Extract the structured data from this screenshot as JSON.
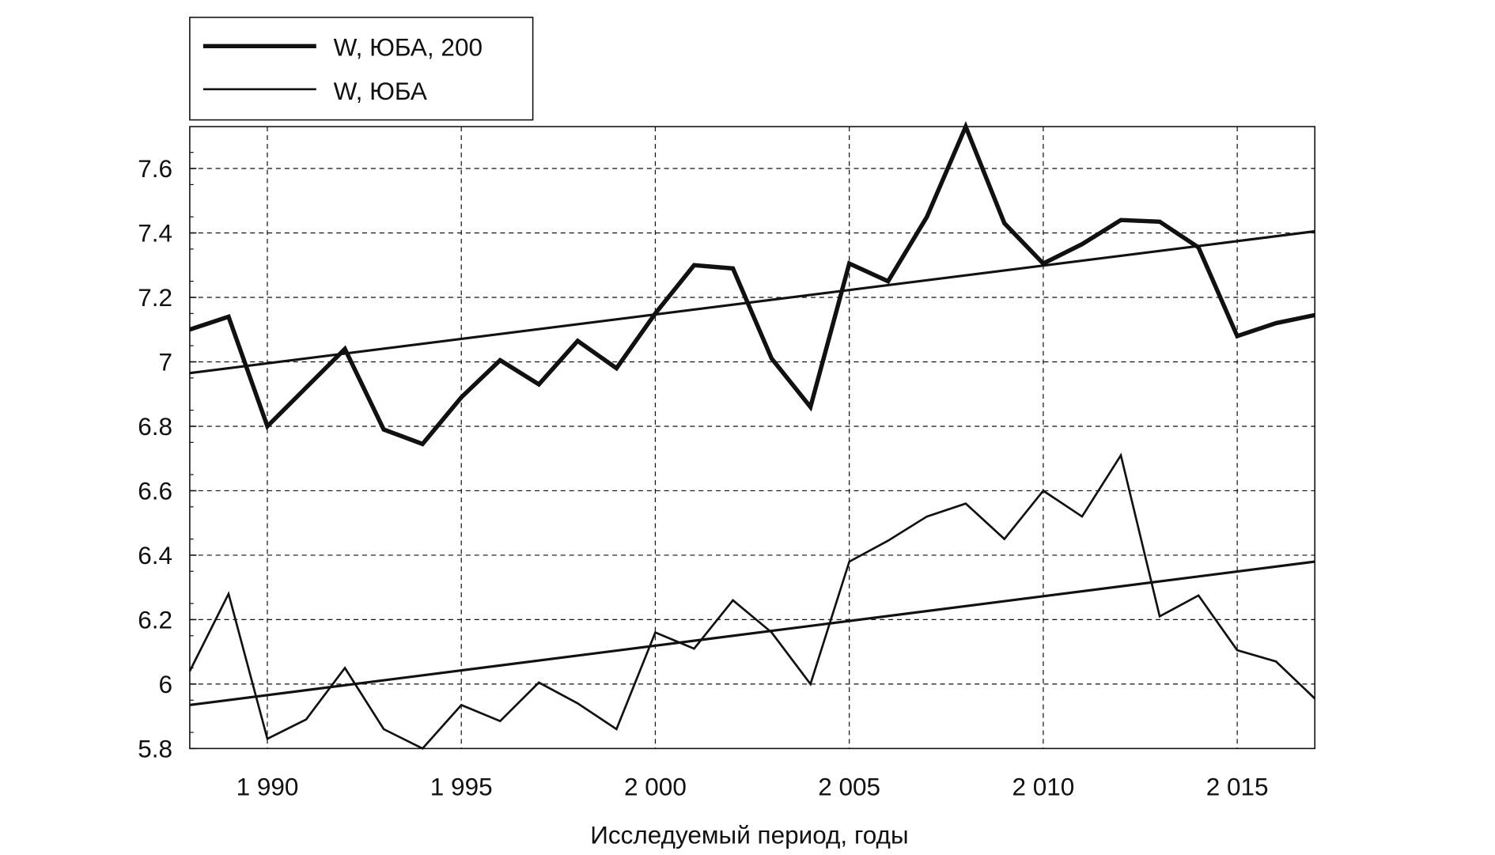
{
  "chart_data": {
    "type": "line",
    "title": "",
    "xlabel": "Исследуемый период, годы",
    "ylabel": "",
    "xlim": [
      1988,
      2017
    ],
    "ylim": [
      5.8,
      7.73
    ],
    "grid": true,
    "legend_position": "top-left, outside above plot",
    "x_ticks": [
      1990,
      1995,
      2000,
      2005,
      2010,
      2015
    ],
    "x_tick_labels": [
      "1 990",
      "1 995",
      "2 000",
      "2 005",
      "2 010",
      "2 015"
    ],
    "y_ticks": [
      5.8,
      6,
      6.2,
      6.4,
      6.6,
      6.8,
      7,
      7.2,
      7.4,
      7.6
    ],
    "y_tick_labels": [
      "5.8",
      "6",
      "6.2",
      "6.4",
      "6.6",
      "6.8",
      "7",
      "7.2",
      "7.4",
      "7.6"
    ],
    "x": [
      1988,
      1989,
      1990,
      1991,
      1992,
      1993,
      1994,
      1995,
      1996,
      1997,
      1998,
      1999,
      2000,
      2001,
      2002,
      2003,
      2004,
      2005,
      2006,
      2007,
      2008,
      2009,
      2010,
      2011,
      2012,
      2013,
      2014,
      2015,
      2016,
      2017
    ],
    "series": [
      {
        "name": "W, ЮБА, 200",
        "style": "thick",
        "color": "#111111",
        "values": [
          7.1,
          7.14,
          6.8,
          6.92,
          7.04,
          6.79,
          6.745,
          6.89,
          7.005,
          6.93,
          7.065,
          6.98,
          7.15,
          7.3,
          7.29,
          7.01,
          6.86,
          7.305,
          7.25,
          7.45,
          7.73,
          7.43,
          7.305,
          7.365,
          7.44,
          7.435,
          7.355,
          7.08,
          7.12,
          7.145
        ],
        "trend": {
          "x": [
            1988,
            2017
          ],
          "y": [
            6.965,
            7.405
          ]
        }
      },
      {
        "name": "W, ЮБА",
        "style": "thin",
        "color": "#111111",
        "values": [
          6.04,
          6.28,
          5.83,
          5.89,
          6.05,
          5.86,
          5.8,
          5.935,
          5.885,
          6.005,
          5.94,
          5.86,
          6.16,
          6.11,
          6.26,
          6.16,
          6.0,
          6.38,
          6.445,
          6.52,
          6.56,
          6.45,
          6.6,
          6.52,
          6.71,
          6.21,
          6.275,
          6.105,
          6.07,
          5.955
        ],
        "trend": {
          "x": [
            1988,
            2017
          ],
          "y": [
            5.935,
            6.38
          ]
        }
      }
    ]
  }
}
